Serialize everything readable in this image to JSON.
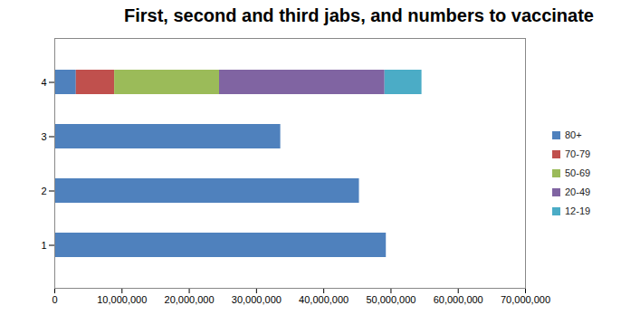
{
  "chart_data": {
    "type": "bar",
    "title": "First, second and third jabs, and numbers to vaccinate",
    "orientation": "horizontal",
    "stacked": true,
    "grid": false,
    "legend": "right",
    "categories": [
      "1",
      "2",
      "3",
      "4"
    ],
    "series": [
      {
        "name": "80+",
        "color": "#4F81BD",
        "values": [
          49300000,
          45300000,
          33600000,
          3200000
        ]
      },
      {
        "name": "70-79",
        "color": "#C0504D",
        "values": [
          null,
          null,
          null,
          5700000
        ]
      },
      {
        "name": "50-69",
        "color": "#9BBB59",
        "values": [
          null,
          null,
          null,
          15600000
        ]
      },
      {
        "name": "20-49",
        "color": "#8064A2",
        "values": [
          null,
          null,
          null,
          24600000
        ]
      },
      {
        "name": "12-19",
        "color": "#4BACC6",
        "values": [
          null,
          null,
          null,
          5500000
        ]
      }
    ],
    "xlim": [
      0,
      70000000
    ],
    "xticks": [
      0,
      {
        "value": 10000000,
        "label": "10,000,000"
      },
      {
        "value": 20000000,
        "label": "20,000,000"
      },
      {
        "value": 30000000,
        "label": "30,000,000"
      },
      {
        "value": 40000000,
        "label": "40,000,000"
      },
      {
        "value": 50000000,
        "label": "50,000,000"
      },
      {
        "value": 60000000,
        "label": "60,000,000"
      },
      {
        "value": 70000000,
        "label": "70,000,000"
      }
    ]
  }
}
